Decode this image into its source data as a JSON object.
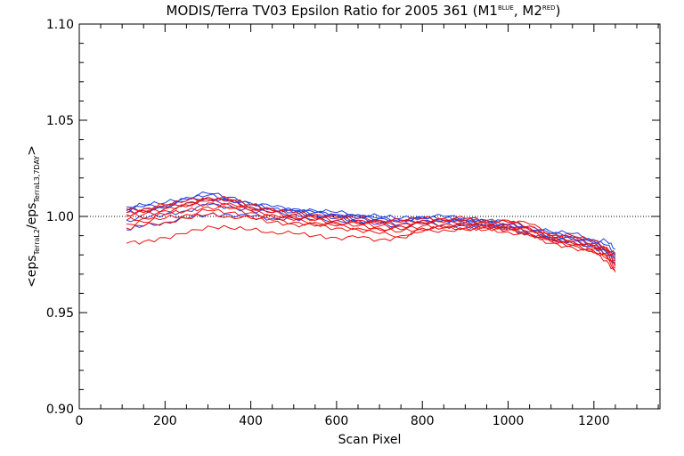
{
  "chart_data": {
    "type": "line",
    "title": {
      "prefix": "MODIS/Terra TV03 Epsilon Ratio for 2005 361 (M1",
      "sup1": "BLUE",
      "middle": ", M2",
      "sup2": "RED",
      "suffix": ")"
    },
    "xlabel": "Scan Pixel",
    "ylabel": {
      "open": "<eps",
      "sub1": "TerraL2",
      "slash": "/eps",
      "sub2": "TerraL3,7DAY",
      "close": ">"
    },
    "xlim": [
      0,
      1354
    ],
    "ylim": [
      0.9,
      1.1
    ],
    "x_ticks": [
      {
        "value": 0,
        "label": "0"
      },
      {
        "value": 200,
        "label": "200"
      },
      {
        "value": 400,
        "label": "400"
      },
      {
        "value": 600,
        "label": "600"
      },
      {
        "value": 800,
        "label": "800"
      },
      {
        "value": 1000,
        "label": "1000"
      },
      {
        "value": 1200,
        "label": "1200"
      }
    ],
    "y_ticks": [
      {
        "value": 0.9,
        "label": "0.90"
      },
      {
        "value": 0.95,
        "label": "0.95"
      },
      {
        "value": 1.0,
        "label": "1.00"
      },
      {
        "value": 1.05,
        "label": "1.05"
      },
      {
        "value": 1.1,
        "label": "1.10"
      }
    ],
    "reference_line": {
      "y": 1.0,
      "style": "dotted"
    },
    "x": [
      110,
      150,
      200,
      250,
      300,
      350,
      400,
      450,
      500,
      550,
      600,
      650,
      700,
      750,
      800,
      850,
      900,
      950,
      1000,
      1050,
      1100,
      1150,
      1200,
      1230,
      1250
    ],
    "series_colors": {
      "blue": "#1f3fdf",
      "red": "#ee1111"
    },
    "series": [
      {
        "color": "blue",
        "values": [
          1.005,
          1.006,
          1.007,
          1.01,
          1.012,
          1.01,
          1.007,
          1.005,
          1.004,
          1.003,
          1.002,
          1.001,
          1.0,
          0.999,
          1.0,
          1.0,
          0.999,
          0.998,
          0.997,
          0.995,
          0.992,
          0.991,
          0.988,
          0.987,
          0.983
        ]
      },
      {
        "color": "blue",
        "values": [
          1.004,
          1.005,
          1.006,
          1.009,
          1.011,
          1.009,
          1.006,
          1.004,
          1.003,
          1.002,
          1.001,
          1.0,
          0.999,
          0.998,
          0.999,
          0.999,
          0.998,
          0.997,
          0.996,
          0.994,
          0.991,
          0.99,
          0.987,
          0.985,
          0.981
        ]
      },
      {
        "color": "blue",
        "values": [
          1.003,
          1.004,
          1.005,
          1.008,
          1.01,
          1.008,
          1.006,
          1.004,
          1.003,
          1.002,
          1.001,
          1.0,
          0.999,
          0.998,
          0.999,
          0.998,
          0.998,
          0.997,
          0.996,
          0.993,
          0.99,
          0.989,
          0.986,
          0.983,
          0.979
        ]
      },
      {
        "color": "blue",
        "values": [
          1.002,
          1.003,
          1.004,
          1.007,
          1.009,
          1.008,
          1.005,
          1.003,
          1.002,
          1.001,
          1.0,
          0.999,
          0.998,
          0.997,
          0.998,
          0.998,
          0.997,
          0.996,
          0.995,
          0.992,
          0.989,
          0.988,
          0.985,
          0.982,
          0.977
        ]
      },
      {
        "color": "blue",
        "values": [
          0.998,
          0.999,
          1.001,
          1.003,
          1.006,
          1.005,
          1.003,
          1.002,
          1.001,
          1.0,
          0.999,
          0.998,
          0.997,
          0.996,
          0.997,
          0.997,
          0.996,
          0.995,
          0.994,
          0.991,
          0.988,
          0.987,
          0.984,
          0.981,
          0.976
        ]
      },
      {
        "color": "blue",
        "values": [
          0.993,
          0.995,
          0.997,
          0.999,
          1.001,
          1.001,
          1.0,
          0.999,
          0.999,
          0.998,
          0.998,
          0.997,
          0.996,
          0.995,
          0.996,
          0.996,
          0.995,
          0.995,
          0.994,
          0.991,
          0.988,
          0.987,
          0.984,
          0.98,
          0.975
        ]
      },
      {
        "color": "red",
        "values": [
          1.003,
          1.004,
          1.006,
          1.008,
          1.01,
          1.009,
          1.006,
          1.004,
          1.002,
          1.001,
          1.0,
          0.999,
          0.998,
          0.998,
          0.999,
          0.999,
          0.999,
          0.998,
          0.998,
          0.996,
          0.991,
          0.99,
          0.987,
          0.984,
          0.98
        ]
      },
      {
        "color": "red",
        "values": [
          1.002,
          1.003,
          1.005,
          1.007,
          1.009,
          1.008,
          1.005,
          1.003,
          1.001,
          1.0,
          0.999,
          0.998,
          0.997,
          0.997,
          0.998,
          0.998,
          0.998,
          0.997,
          0.997,
          0.995,
          0.99,
          0.989,
          0.986,
          0.983,
          0.978
        ]
      },
      {
        "color": "red",
        "values": [
          1.001,
          1.002,
          1.004,
          1.006,
          1.008,
          1.007,
          1.004,
          1.002,
          1.0,
          0.999,
          0.998,
          0.997,
          0.996,
          0.996,
          0.997,
          0.997,
          0.997,
          0.996,
          0.996,
          0.994,
          0.989,
          0.988,
          0.985,
          0.982,
          0.977
        ]
      },
      {
        "color": "red",
        "values": [
          1.0,
          1.001,
          1.003,
          1.005,
          1.007,
          1.006,
          1.003,
          1.001,
          0.999,
          0.998,
          0.997,
          0.996,
          0.995,
          0.995,
          0.996,
          0.996,
          0.996,
          0.995,
          0.995,
          0.993,
          0.988,
          0.987,
          0.984,
          0.981,
          0.975
        ]
      },
      {
        "color": "red",
        "values": [
          0.998,
          0.999,
          1.001,
          1.003,
          1.005,
          1.004,
          1.002,
          1.0,
          0.998,
          0.997,
          0.996,
          0.995,
          0.994,
          0.993,
          0.995,
          0.995,
          0.995,
          0.995,
          0.994,
          0.992,
          0.988,
          0.986,
          0.983,
          0.98,
          0.974
        ]
      },
      {
        "color": "red",
        "values": [
          0.996,
          0.997,
          0.999,
          1.001,
          1.003,
          1.002,
          1.0,
          0.998,
          0.997,
          0.996,
          0.995,
          0.994,
          0.993,
          0.992,
          0.994,
          0.994,
          0.994,
          0.994,
          0.993,
          0.991,
          0.987,
          0.985,
          0.982,
          0.979,
          0.973
        ]
      },
      {
        "color": "red",
        "values": [
          0.994,
          0.995,
          0.997,
          0.999,
          1.001,
          1.0,
          0.999,
          0.997,
          0.996,
          0.995,
          0.994,
          0.993,
          0.991,
          0.99,
          0.993,
          0.994,
          0.994,
          0.994,
          0.993,
          0.991,
          0.987,
          0.985,
          0.982,
          0.978,
          0.972
        ]
      },
      {
        "color": "red",
        "values": [
          0.986,
          0.987,
          0.989,
          0.991,
          0.995,
          0.994,
          0.993,
          0.992,
          0.991,
          0.99,
          0.989,
          0.989,
          0.988,
          0.989,
          0.992,
          0.993,
          0.993,
          0.993,
          0.992,
          0.99,
          0.986,
          0.984,
          0.981,
          0.977,
          0.971
        ]
      }
    ]
  }
}
